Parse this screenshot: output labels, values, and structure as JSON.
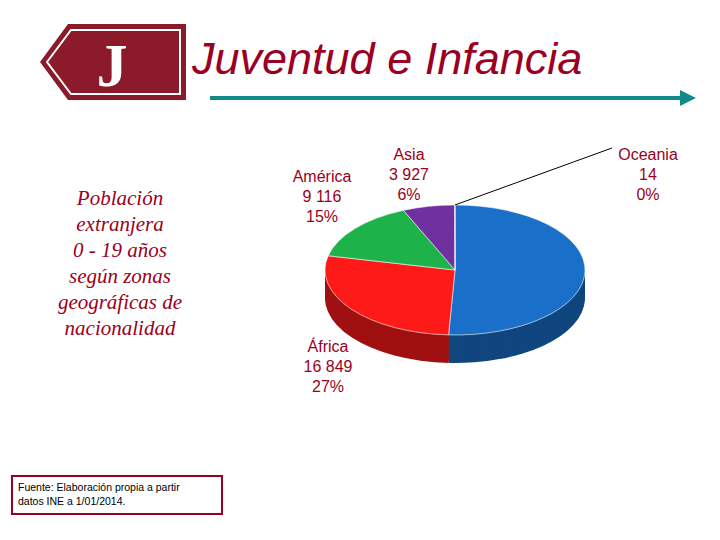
{
  "header": {
    "logo": "J"
  },
  "chart_data": {
    "type": "pie",
    "title": "Juventud e Infancia",
    "subtitle": [
      "Población",
      "extranjera",
      "0 - 19 años",
      "según zonas",
      "geográficas de",
      "nacionalidad"
    ],
    "source": [
      "Fuente: Elaboración propia a partir",
      "datos INE a 1/01/2014."
    ],
    "categories": [
      null,
      "África",
      "América",
      "Asia",
      "Oceania"
    ],
    "values": [
      30864,
      16849,
      9116,
      3927,
      14
    ],
    "value_labels": [
      null,
      "16 849",
      "9 116",
      "3 927",
      "14"
    ],
    "percent_labels": [
      null,
      "27%",
      "15%",
      "6%",
      "0%"
    ],
    "colors": [
      "#1a6fc9",
      "#ff1a1a",
      "#1db34a",
      "#7030a0",
      "#f2c200"
    ],
    "data_labels": true
  }
}
